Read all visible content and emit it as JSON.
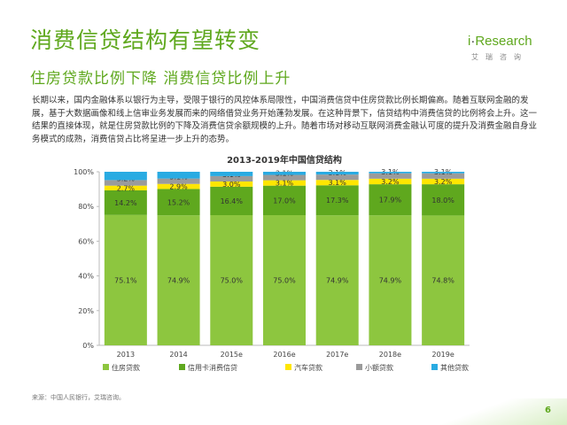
{
  "slide": {
    "title": "消费信贷结构有望转变",
    "subtitle": "住房贷款比例下降 消费信贷比例上升",
    "body": "长期以来，国内金融体系以银行为主导，受限于银行的风控体系局限性，中国消费信贷中住房贷款比例长期偏高。随着互联网金融的发展，基于大数据画像和线上信审业务发展而来的网络借贷业务开始蓬勃发展。在这种背景下，信贷结构中消费信贷的比例将会上升。这一结果的直接体现，就是住房贷款比例的下降及消费信贷余额规模的上升。随着市场对移动互联网消费金融认可度的提升及消费金融自身业务模式的成熟，消费信贷占比将呈进一步上升的态势。",
    "source": "来源：中国人民银行，艾瑞咨询。",
    "page_number": "6"
  },
  "logo": {
    "main_prefix": "i",
    "main_dot": "·",
    "main_suffix": "Research",
    "sub": "艾瑞咨询"
  },
  "colors": {
    "accent": "#5fa81e"
  },
  "chart_data": {
    "type": "bar",
    "stacked": true,
    "title": "2013-2019年中国信贷结构",
    "categories": [
      "2013",
      "2014",
      "2015e",
      "2016e",
      "2017e",
      "2018e",
      "2019e"
    ],
    "ylim": [
      0,
      100
    ],
    "yticks": [
      "0%",
      "20%",
      "40%",
      "60%",
      "80%",
      "100%"
    ],
    "series": [
      {
        "name": "住房贷款",
        "color": "#8dc63f",
        "values": [
          75.1,
          74.9,
          75.0,
          75.0,
          74.9,
          74.9,
          74.8
        ],
        "labels": [
          "75.1%",
          "74.9%",
          "75.0%",
          "75.0%",
          "74.9%",
          "74.9%",
          "74.8%"
        ]
      },
      {
        "name": "信用卡消费信贷",
        "color": "#5fa81e",
        "values": [
          14.2,
          15.2,
          16.4,
          17.0,
          17.3,
          17.9,
          18.0
        ],
        "labels": [
          "14.2%",
          "15.2%",
          "16.4%",
          "17.0%",
          "17.3%",
          "17.9%",
          "18.0%"
        ]
      },
      {
        "name": "汽车贷款",
        "color": "#ffe600",
        "values": [
          2.7,
          2.9,
          3.0,
          3.1,
          3.1,
          3.2,
          3.2
        ],
        "labels": [
          "2.7%",
          "2.9%",
          "3.0%",
          "3.1%",
          "3.1%",
          "3.2%",
          "3.2%"
        ]
      },
      {
        "name": "小额贷款",
        "color": "#9b9b9b",
        "values": [
          3.2,
          3.1,
          3.1,
          3.1,
          3.1,
          3.1,
          3.1
        ],
        "labels": [
          "3.2%",
          "3.1%",
          "3.1%",
          "3.1%",
          "3.1%",
          "3.1%",
          "3.1%"
        ]
      },
      {
        "name": "其他贷款",
        "color": "#29abe2",
        "values": [
          4.8,
          3.9,
          2.5,
          1.8,
          1.6,
          0.9,
          0.9
        ],
        "labels": [
          "",
          "",
          "",
          "",
          "",
          "",
          ""
        ]
      }
    ]
  }
}
